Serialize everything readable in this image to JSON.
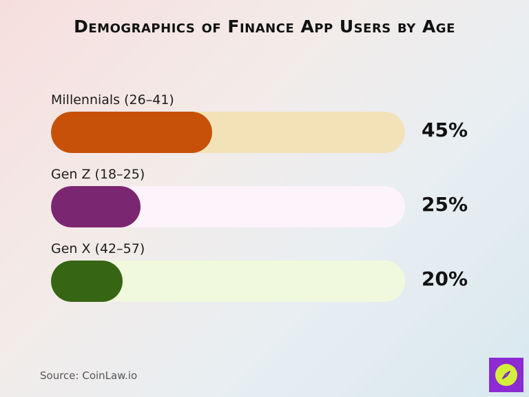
{
  "title": "Demographics of Finance App Users by Age",
  "source": "Source: CoinLaw.io",
  "chart_data": {
    "type": "bar",
    "orientation": "horizontal",
    "max": 100,
    "categories": [
      "Millennials (26–41)",
      "Gen Z (18–25)",
      "Gen X (42–57)"
    ],
    "values": [
      45,
      25,
      20
    ],
    "value_labels": [
      "45%",
      "25%",
      "20%"
    ],
    "fill_colors": [
      "#c75109",
      "#7b2670",
      "#366514"
    ],
    "track_colors": [
      "#f3e2b8",
      "#fdf3fb",
      "#f0f9dd"
    ]
  },
  "colors": {
    "logo_background": "#8b2bd1",
    "logo_accent": "#d4ef3a"
  },
  "icons": {
    "logo": "compass-icon"
  }
}
